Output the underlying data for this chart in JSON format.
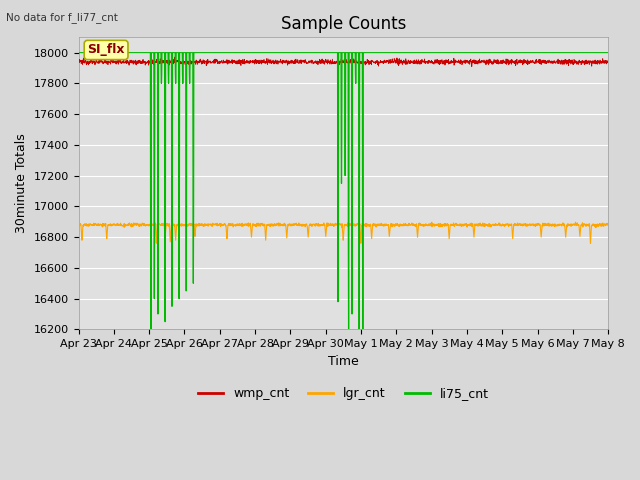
{
  "title": "Sample Counts",
  "xlabel": "Time",
  "ylabel": "30minute Totals",
  "top_left_note": "No data for f_li77_cnt",
  "annotation": "SI_flx",
  "ylim": [
    16200,
    18100
  ],
  "yticks": [
    16200,
    16400,
    16600,
    16800,
    17000,
    17200,
    17400,
    17600,
    17800,
    18000
  ],
  "bg_color": "#d8d8d8",
  "plot_bg_color": "#e0e0e0",
  "wmp_color": "#cc0000",
  "lgr_color": "#ffa500",
  "li75_color": "#00bb00",
  "legend_labels": [
    "wmp_cnt",
    "lgr_cnt",
    "li75_cnt"
  ],
  "wmp_base": 17940,
  "lgr_base": 16880,
  "li75_base": 18000,
  "title_fontsize": 12,
  "axis_label_fontsize": 9,
  "tick_fontsize": 8
}
